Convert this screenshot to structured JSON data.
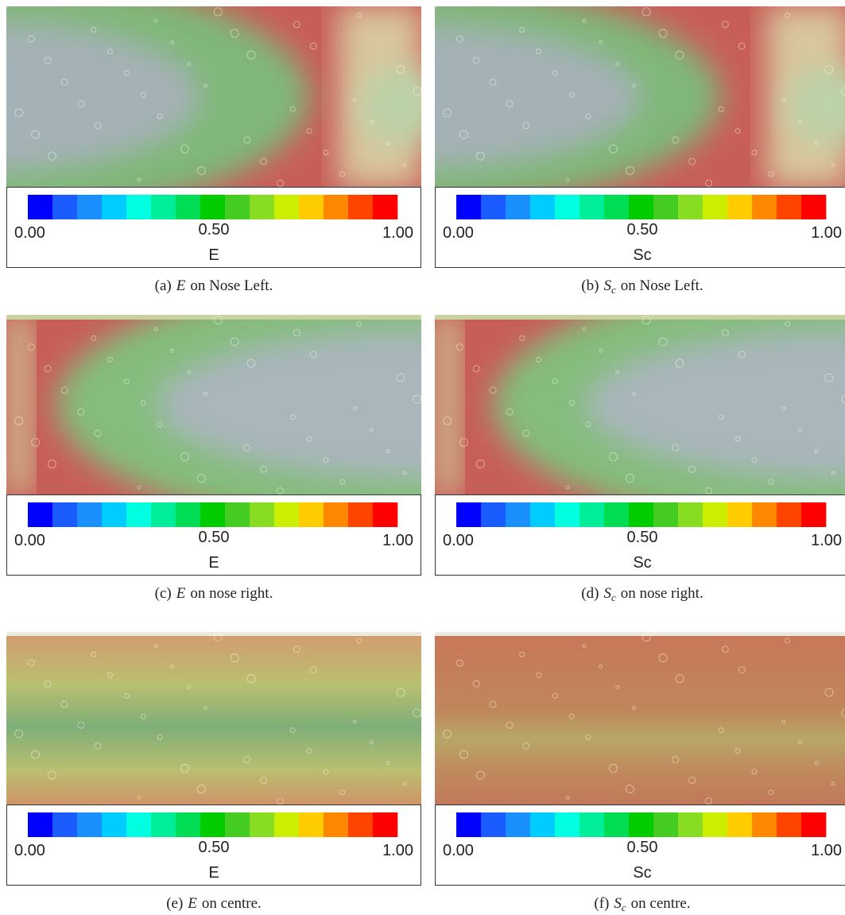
{
  "colormap": [
    "#0000ff",
    "#1a5cff",
    "#1a90ff",
    "#00ccff",
    "#00ffe0",
    "#00ee99",
    "#00dd55",
    "#00cc00",
    "#44cc22",
    "#88dd22",
    "#ccee00",
    "#ffcc00",
    "#ff8800",
    "#ff4400",
    "#ff0000"
  ],
  "panels": [
    {
      "tag": "(a)",
      "symbol": "E",
      "text": "on Nose Left.",
      "colorbar": {
        "ticks": [
          "0.00",
          "0.50",
          "1.00"
        ],
        "label": "E"
      }
    },
    {
      "tag": "(b)",
      "symbol": "S",
      "subscript": "c",
      "text": "on Nose Left.",
      "colorbar": {
        "ticks": [
          "0.00",
          "0.50",
          "1.00"
        ],
        "label": "Sc"
      }
    },
    {
      "tag": "(c)",
      "symbol": "E",
      "text": "on nose right.",
      "colorbar": {
        "ticks": [
          "0.00",
          "0.50",
          "1.00"
        ],
        "label": "E"
      }
    },
    {
      "tag": "(d)",
      "symbol": "S",
      "subscript": "c",
      "text": "on nose right.",
      "colorbar": {
        "ticks": [
          "0.00",
          "0.50",
          "1.00"
        ],
        "label": "Sc"
      }
    },
    {
      "tag": "(e)",
      "symbol": "E",
      "text": "on centre.",
      "colorbar": {
        "ticks": [
          "0.00",
          "0.50",
          "1.00"
        ],
        "label": "E"
      }
    },
    {
      "tag": "(f)",
      "symbol": "S",
      "subscript": "c",
      "text": "on centre.",
      "colorbar": {
        "ticks": [
          "0.00",
          "0.50",
          "1.00"
        ],
        "label": "Sc"
      }
    }
  ]
}
